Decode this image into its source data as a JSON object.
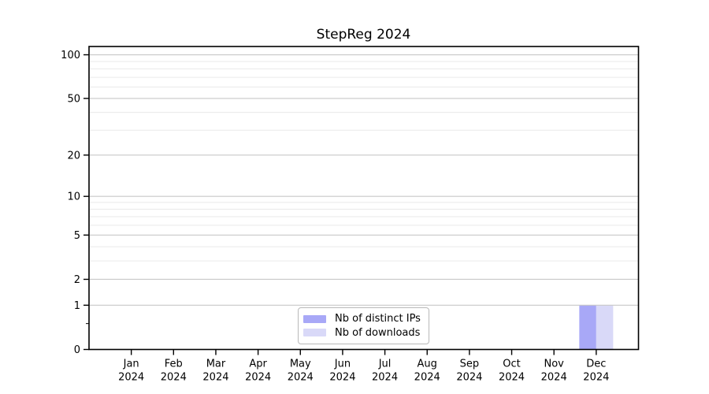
{
  "figure": {
    "title": "StepReg 2024"
  },
  "chart_data": {
    "type": "bar",
    "title": "StepReg 2024",
    "y_scale": "log10(1+x)",
    "ylim": [
      0,
      114
    ],
    "grid": true,
    "y_axis": {
      "ticks": [
        0,
        1,
        2,
        5,
        10,
        20,
        50,
        100
      ],
      "minor_ticks": [
        3,
        4,
        6,
        7,
        8,
        9,
        30,
        40,
        60,
        70,
        80,
        90
      ],
      "half_minor_tick": 0.5
    },
    "x_axis": {
      "categories": [
        {
          "month": "Jan",
          "year": "2024"
        },
        {
          "month": "Feb",
          "year": "2024"
        },
        {
          "month": "Mar",
          "year": "2024"
        },
        {
          "month": "Apr",
          "year": "2024"
        },
        {
          "month": "May",
          "year": "2024"
        },
        {
          "month": "Jun",
          "year": "2024"
        },
        {
          "month": "Jul",
          "year": "2024"
        },
        {
          "month": "Aug",
          "year": "2024"
        },
        {
          "month": "Sep",
          "year": "2024"
        },
        {
          "month": "Oct",
          "year": "2024"
        },
        {
          "month": "Nov",
          "year": "2024"
        },
        {
          "month": "Dec",
          "year": "2024"
        }
      ]
    },
    "series": [
      {
        "name": "Nb of distinct IPs",
        "color": "#a8a8f7",
        "values": [
          0,
          0,
          0,
          0,
          0,
          0,
          0,
          0,
          0,
          0,
          0,
          1
        ]
      },
      {
        "name": "Nb of downloads",
        "color": "#d9d9f8",
        "values": [
          0,
          0,
          0,
          0,
          0,
          0,
          0,
          0,
          0,
          0,
          0,
          1
        ]
      }
    ],
    "legend": {
      "position": "bottom-center"
    },
    "colors": {
      "major_grid": "#c8c8c8",
      "minor_grid": "#eaeaea",
      "axis": "#000000",
      "text": "#000000",
      "background": "#ffffff"
    }
  }
}
